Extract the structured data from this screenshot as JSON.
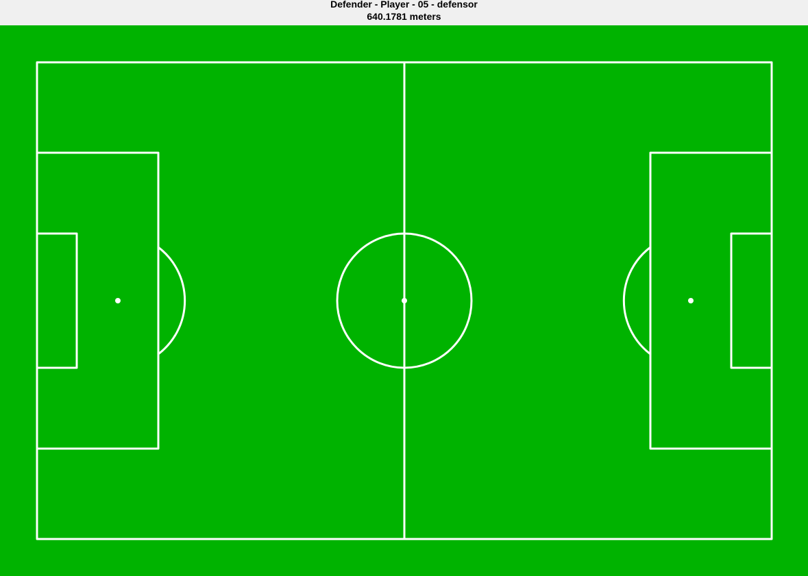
{
  "figure": {
    "title_line1": "Defender - Player - 05 - defensor",
    "title_line2": "640.1781 meters"
  },
  "colors": {
    "pitch": "#00b300",
    "lines": "#ffffff",
    "background": "#f0f0f0"
  }
}
